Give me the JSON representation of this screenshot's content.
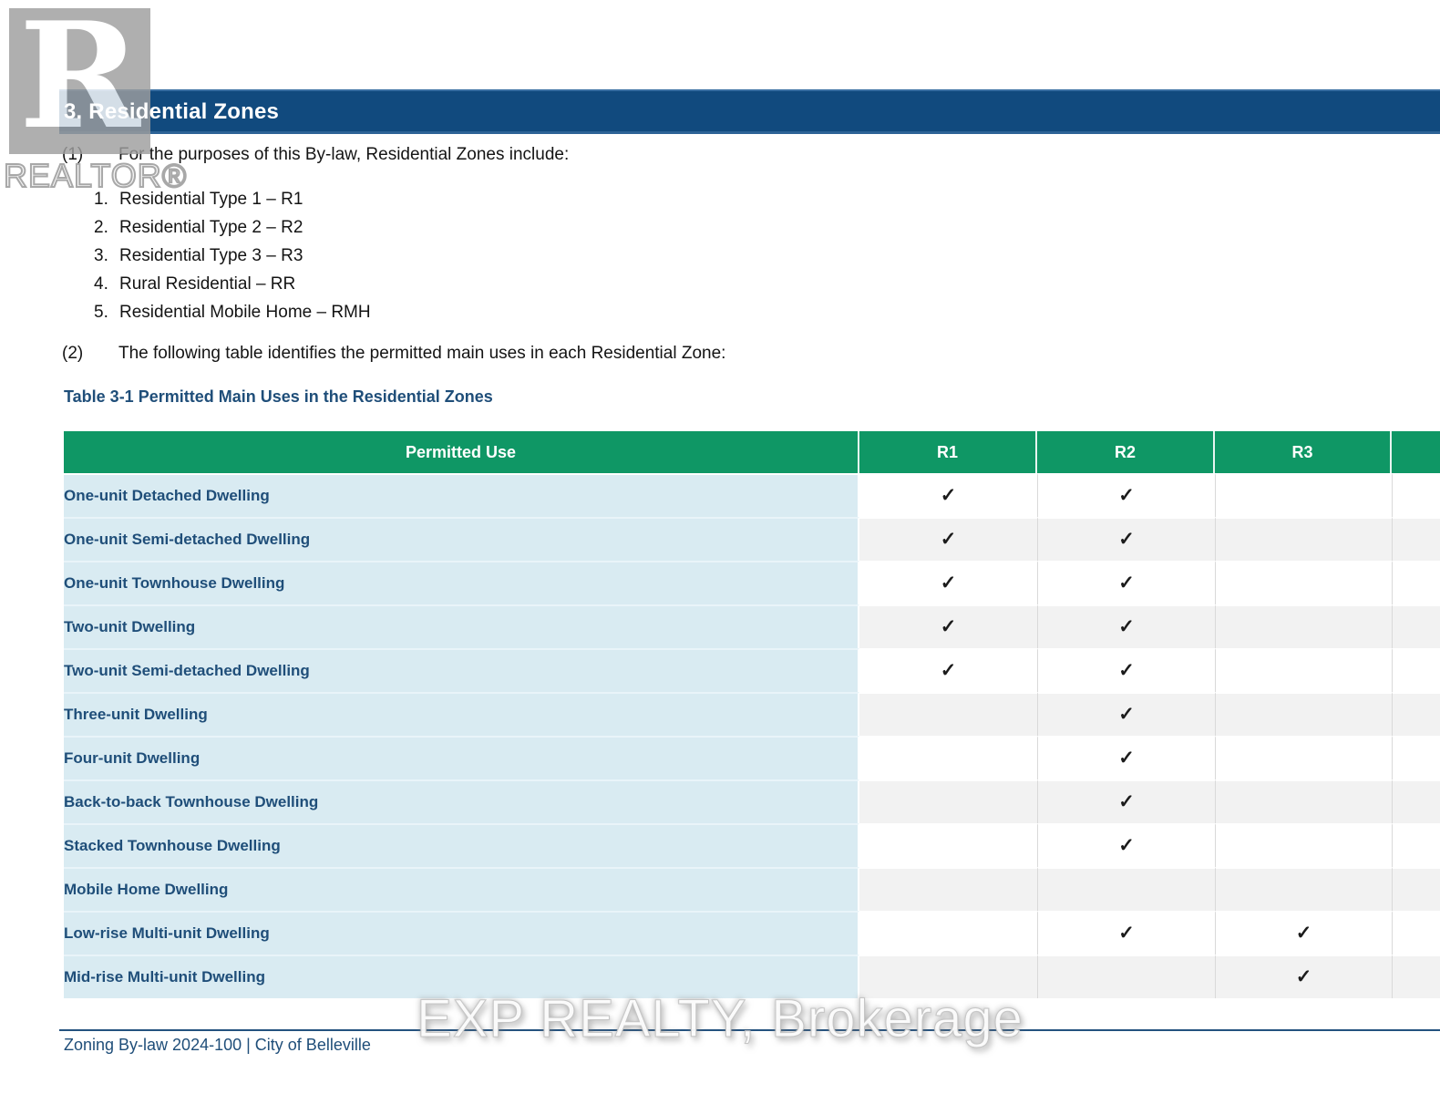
{
  "header": {
    "section_title": "3. Residential Zones"
  },
  "watermarks": {
    "realtor_logo_letter": "R",
    "realtor_wordmark": "REALTOR®",
    "brokerage_text": "EXP REALTY, Brokerage"
  },
  "intro": {
    "clause1_num": "(1)",
    "clause1_text": "For the purposes of this By-law, Residential Zones include:",
    "zones": [
      {
        "num": "1.",
        "label": "Residential Type 1 – R1"
      },
      {
        "num": "2.",
        "label": "Residential Type 2 – R2"
      },
      {
        "num": "3.",
        "label": "Residential Type 3 – R3"
      },
      {
        "num": "4.",
        "label": "Rural Residential – RR"
      },
      {
        "num": "5.",
        "label": "Residential Mobile Home – RMH"
      }
    ],
    "clause2_num": "(2)",
    "clause2_text": "The following table identifies the permitted main uses in each Residential Zone:"
  },
  "table": {
    "caption": "Table 3-1 Permitted Main Uses in the Residential Zones",
    "columns": [
      "Permitted Use",
      "R1",
      "R2",
      "R3"
    ],
    "check_glyph": "✓",
    "rows": [
      {
        "use": "One-unit Detached Dwelling",
        "r1": true,
        "r2": true,
        "r3": false
      },
      {
        "use": "One-unit Semi-detached Dwelling",
        "r1": true,
        "r2": true,
        "r3": false
      },
      {
        "use": "One-unit Townhouse Dwelling",
        "r1": true,
        "r2": true,
        "r3": false
      },
      {
        "use": "Two-unit Dwelling",
        "r1": true,
        "r2": true,
        "r3": false
      },
      {
        "use": "Two-unit Semi-detached Dwelling",
        "r1": true,
        "r2": true,
        "r3": false
      },
      {
        "use": "Three-unit Dwelling",
        "r1": false,
        "r2": true,
        "r3": false
      },
      {
        "use": "Four-unit Dwelling",
        "r1": false,
        "r2": true,
        "r3": false
      },
      {
        "use": "Back-to-back Townhouse Dwelling",
        "r1": false,
        "r2": true,
        "r3": false
      },
      {
        "use": "Stacked Townhouse Dwelling",
        "r1": false,
        "r2": true,
        "r3": false
      },
      {
        "use": "Mobile Home Dwelling",
        "r1": false,
        "r2": false,
        "r3": false
      },
      {
        "use": "Low-rise Multi-unit Dwelling",
        "r1": false,
        "r2": true,
        "r3": true
      },
      {
        "use": "Mid-rise Multi-unit Dwelling",
        "r1": false,
        "r2": false,
        "r3": true
      }
    ]
  },
  "footer": {
    "text": "Zoning By-law 2024-100 | City of Belleville"
  },
  "colors": {
    "navy_bar": "#114a7e",
    "navy_text": "#1f4e79",
    "green_header": "#0f9765",
    "label_cell_bg": "#d9ebf2",
    "alt_row_bg": "#f2f2f2",
    "check_color": "#1b1b1b"
  }
}
